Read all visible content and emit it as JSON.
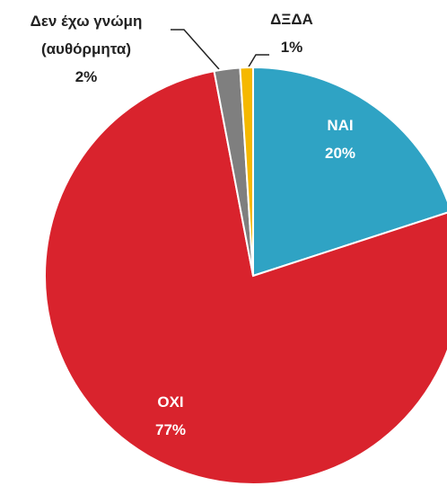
{
  "chart_data": {
    "type": "pie",
    "categories": [
      "ΝΑΙ",
      "ΟΧΙ",
      "Δεν έχω γνώμη (αυθόρμητα)",
      "ΔΞΔΑ"
    ],
    "values": [
      20,
      77,
      2,
      1
    ],
    "value_labels": [
      "20%",
      "77%",
      "2%",
      "1%"
    ],
    "colors": [
      "#2fa3c4",
      "#d9232d",
      "#7f7f7f",
      "#f5b800"
    ]
  }
}
